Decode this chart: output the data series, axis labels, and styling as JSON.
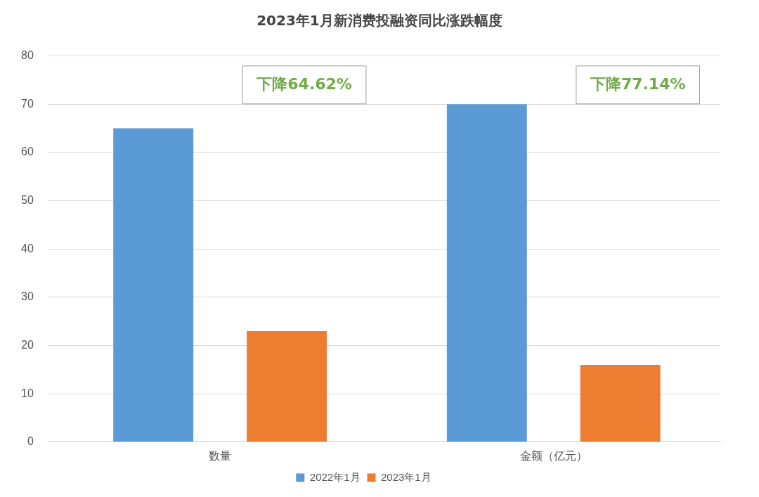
{
  "chart_data": {
    "type": "bar",
    "title": "2023年1月新消费投融资同比涨跌幅度",
    "categories": [
      "数量",
      "金额（亿元）"
    ],
    "series": [
      {
        "name": "2022年1月",
        "color": "#5b9bd5",
        "values": [
          65,
          70
        ]
      },
      {
        "name": "2023年1月",
        "color": "#ed7d31",
        "values": [
          23,
          16
        ]
      }
    ],
    "ylim": [
      0,
      80
    ],
    "yticks": [
      0,
      10,
      20,
      30,
      40,
      50,
      60,
      70,
      80
    ],
    "grid": "y",
    "legend": "bottom",
    "annotations": [
      "下降64.62%",
      "下降77.14%"
    ]
  }
}
